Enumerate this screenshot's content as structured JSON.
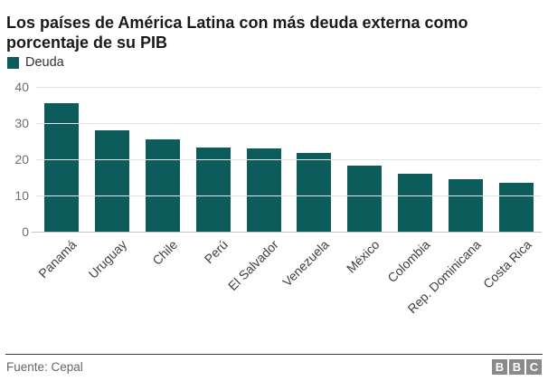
{
  "header": {
    "title": "Los países de América Latina con más deuda externa como porcentaje de su PIB"
  },
  "legend": {
    "label": "Deuda"
  },
  "chart_data": {
    "type": "bar",
    "title": "Los países de América Latina con más deuda externa como porcentaje de su PIB",
    "categories": [
      "Panamá",
      "Uruguay",
      "Chile",
      "Perú",
      "El Salvador",
      "Venezuela",
      "México",
      "Colombia",
      "Rep. Dominicana",
      "Costa Rica"
    ],
    "values": [
      35.5,
      28.1,
      25.4,
      23.3,
      23.1,
      21.8,
      18.3,
      16,
      14.5,
      13.5
    ],
    "series_name": "Deuda",
    "xlabel": "",
    "ylabel": "",
    "ylim": [
      0,
      40
    ],
    "yticks": [
      40,
      30,
      20,
      10,
      0
    ],
    "grid": true,
    "legend_position": "top-left",
    "bar_color": "#0d5c5c"
  },
  "colors": {
    "bar": "#0d5c5c",
    "gridline": "#e4e4e4",
    "baseline": "#c4c4c4",
    "axis_text": "#6f6f6f",
    "category_text": "#404040"
  },
  "footer": {
    "source": "Fuente: Cepal",
    "logo_letters": [
      "B",
      "B",
      "C"
    ]
  }
}
